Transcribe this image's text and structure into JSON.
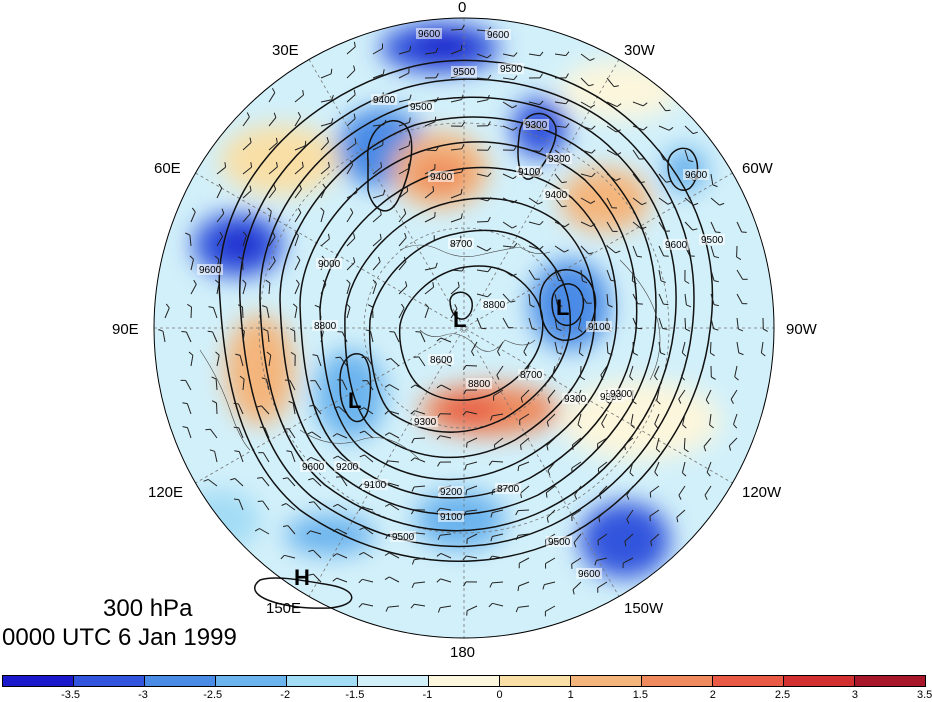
{
  "map": {
    "level": "300 hPa",
    "time": "0000 UTC 6 Jan 1999",
    "longitude_labels": [
      "0",
      "30W",
      "60W",
      "90W",
      "120W",
      "150W",
      "180",
      "150E",
      "120E",
      "90E",
      "60E",
      "30E"
    ],
    "contour_labels": [
      "9600",
      "9600",
      "9500",
      "9500",
      "9400",
      "9300",
      "9300",
      "9400",
      "9100",
      "9600",
      "9500",
      "9600",
      "8700",
      "8800",
      "8800",
      "9000",
      "9100",
      "9200",
      "8600",
      "8800",
      "8700",
      "9300",
      "9500",
      "9600",
      "9100",
      "9500",
      "9600",
      "9300",
      "9400",
      "9500",
      "9600",
      "9300",
      "9200",
      "9100",
      "8700",
      "9300"
    ],
    "pressure_centers": [
      {
        "label": "L"
      },
      {
        "label": "L"
      },
      {
        "label": "L"
      },
      {
        "label": "H"
      }
    ]
  },
  "colorbar": {
    "ticks": [
      "-3.5",
      "-3",
      "-2.5",
      "-2",
      "-1.5",
      "-1",
      "0",
      "1",
      "1.5",
      "2",
      "2.5",
      "3",
      "3.5"
    ],
    "colors": [
      "#1a1acc",
      "#3355dd",
      "#4a8be6",
      "#6cb4ee",
      "#a3dcf5",
      "#d2f0fa",
      "#fcf6dc",
      "#f9dfa6",
      "#f4b57c",
      "#ee8a5d",
      "#e85a45",
      "#d23030",
      "#a8162a"
    ]
  }
}
